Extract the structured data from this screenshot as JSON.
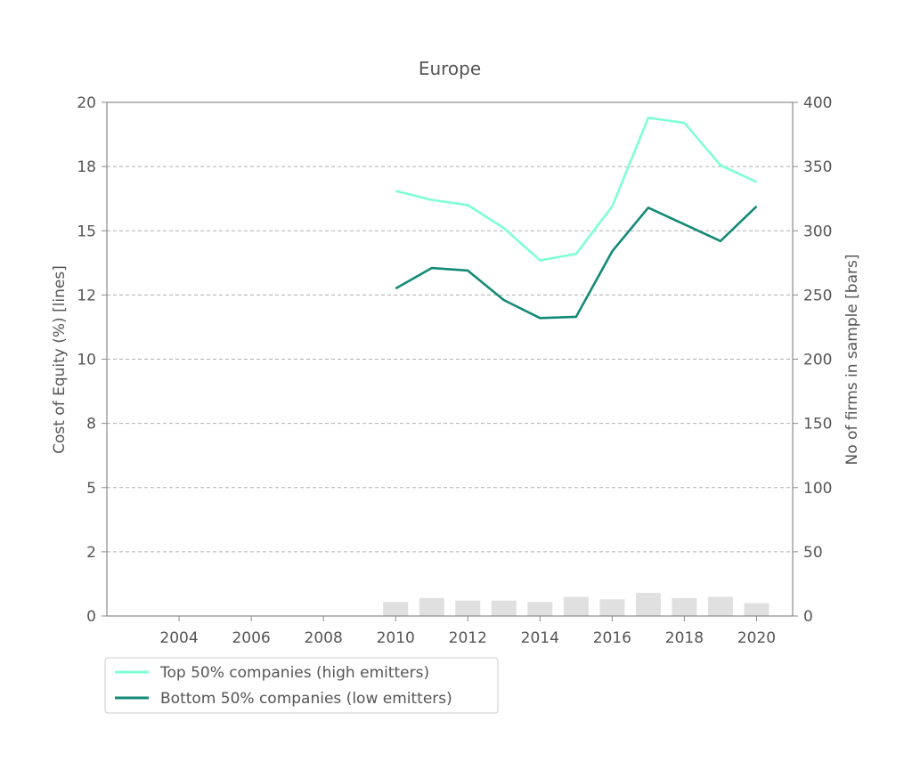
{
  "chart_data": {
    "type": "line",
    "title": "Europe",
    "ylabel": "Cost of Equity (%) [lines]",
    "y2label": "No  of firms in sample [bars]",
    "xlim": [
      2002.0,
      2021.0
    ],
    "ylim": [
      0,
      20
    ],
    "y2lim": [
      0,
      400
    ],
    "x_ticks": [
      "2004",
      "2006",
      "2008",
      "2010",
      "2012",
      "2014",
      "2016",
      "2018",
      "2020"
    ],
    "y_ticks": [
      "0",
      "2",
      "5",
      "8",
      "10",
      "12",
      "15",
      "18",
      "20"
    ],
    "y2_ticks": [
      "0",
      "50",
      "100",
      "150",
      "200",
      "250",
      "300",
      "350",
      "400"
    ],
    "grid": "horizontal dashed",
    "legend_position": "bottom-left",
    "x": [
      2010,
      2011,
      2012,
      2013,
      2014,
      2015,
      2016,
      2017,
      2018,
      2019,
      2020
    ],
    "series": [
      {
        "name": "Top 50% companies (high emitters)",
        "color": "#7fffd4",
        "values": [
          16.55,
          16.2,
          16.0,
          15.1,
          13.85,
          14.1,
          15.95,
          19.4,
          19.2,
          17.55,
          16.9
        ]
      },
      {
        "name": "Bottom 50% companies (low emitters)",
        "color": "#138a76",
        "values": [
          12.75,
          13.55,
          13.45,
          12.3,
          11.6,
          11.65,
          14.2,
          15.9,
          15.25,
          14.6,
          15.95
        ]
      }
    ],
    "bars": {
      "name": "No  of firms in sample",
      "color": "#e0e0e0",
      "values": [
        11,
        14,
        12,
        12,
        11,
        15,
        13,
        18,
        14,
        15,
        10
      ]
    }
  }
}
